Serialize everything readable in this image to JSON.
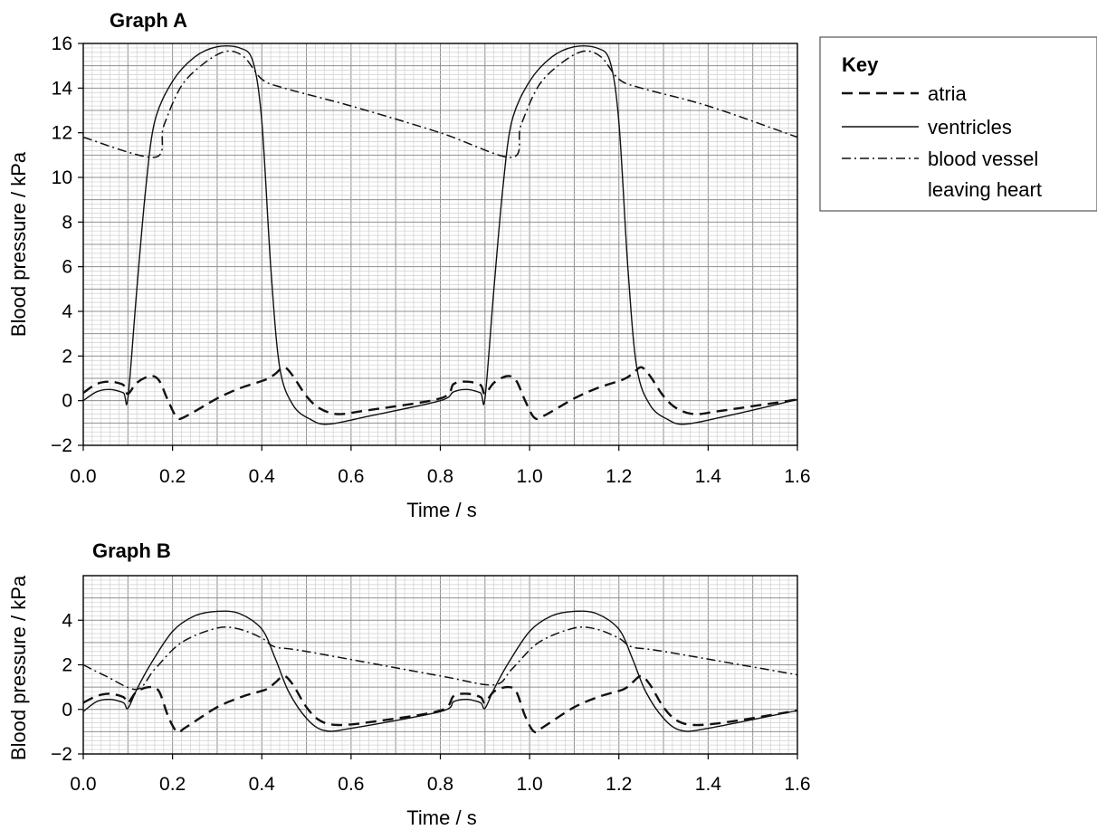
{
  "chart_data": [
    {
      "type": "line",
      "title": "Graph A",
      "xlabel": "Time / s",
      "ylabel": "Blood pressure / kPa",
      "xlim": [
        0,
        1.6
      ],
      "ylim": [
        -2,
        16
      ],
      "grid": true,
      "x_ticks": [
        "0.0",
        "0.2",
        "0.4",
        "0.6",
        "0.8",
        "1.0",
        "1.2",
        "1.4",
        "1.6"
      ],
      "y_ticks": [
        "−2",
        "0",
        "2",
        "4",
        "6",
        "8",
        "10",
        "12",
        "14",
        "16"
      ],
      "series": [
        {
          "name": "atria",
          "style": "dashed",
          "points": [
            [
              0,
              0.35
            ],
            [
              0.03,
              0.75
            ],
            [
              0.06,
              0.85
            ],
            [
              0.09,
              0.7
            ],
            [
              0.1,
              0.3
            ],
            [
              0.12,
              0.8
            ],
            [
              0.15,
              1.1
            ],
            [
              0.17,
              0.9
            ],
            [
              0.19,
              0
            ],
            [
              0.21,
              -0.75
            ],
            [
              0.23,
              -0.7
            ],
            [
              0.3,
              0.1
            ],
            [
              0.35,
              0.55
            ],
            [
              0.41,
              0.95
            ],
            [
              0.43,
              1.2
            ],
            [
              0.45,
              1.5
            ],
            [
              0.47,
              1.1
            ],
            [
              0.5,
              0.2
            ],
            [
              0.53,
              -0.35
            ],
            [
              0.57,
              -0.6
            ],
            [
              0.63,
              -0.45
            ],
            [
              0.8,
              0.1
            ],
            [
              0.83,
              0.75
            ],
            [
              0.86,
              0.85
            ],
            [
              0.89,
              0.7
            ],
            [
              0.9,
              0.3
            ],
            [
              0.92,
              0.8
            ],
            [
              0.95,
              1.1
            ],
            [
              0.97,
              0.9
            ],
            [
              0.99,
              0
            ],
            [
              1.01,
              -0.75
            ],
            [
              1.03,
              -0.7
            ],
            [
              1.1,
              0.1
            ],
            [
              1.15,
              0.55
            ],
            [
              1.21,
              0.95
            ],
            [
              1.23,
              1.2
            ],
            [
              1.25,
              1.5
            ],
            [
              1.27,
              1.1
            ],
            [
              1.3,
              0.2
            ],
            [
              1.33,
              -0.35
            ],
            [
              1.37,
              -0.6
            ],
            [
              1.43,
              -0.45
            ],
            [
              1.6,
              0.05
            ]
          ]
        },
        {
          "name": "ventricles",
          "style": "solid",
          "points": [
            [
              0,
              0
            ],
            [
              0.03,
              0.4
            ],
            [
              0.06,
              0.5
            ],
            [
              0.09,
              0.35
            ],
            [
              0.1,
              0.1
            ],
            [
              0.12,
              5
            ],
            [
              0.14,
              9.5
            ],
            [
              0.16,
              12.5
            ],
            [
              0.2,
              14.3
            ],
            [
              0.25,
              15.4
            ],
            [
              0.3,
              15.85
            ],
            [
              0.35,
              15.8
            ],
            [
              0.38,
              15.2
            ],
            [
              0.4,
              12.5
            ],
            [
              0.42,
              6
            ],
            [
              0.44,
              1.5
            ],
            [
              0.47,
              -0.2
            ],
            [
              0.51,
              -0.85
            ],
            [
              0.55,
              -1.05
            ],
            [
              0.65,
              -0.65
            ],
            [
              0.8,
              0
            ],
            [
              0.83,
              0.4
            ],
            [
              0.86,
              0.5
            ],
            [
              0.89,
              0.35
            ],
            [
              0.9,
              0.1
            ],
            [
              0.92,
              5
            ],
            [
              0.94,
              9.5
            ],
            [
              0.96,
              12.5
            ],
            [
              1.0,
              14.3
            ],
            [
              1.05,
              15.4
            ],
            [
              1.1,
              15.85
            ],
            [
              1.15,
              15.8
            ],
            [
              1.18,
              15.2
            ],
            [
              1.2,
              12.5
            ],
            [
              1.22,
              6
            ],
            [
              1.24,
              1.5
            ],
            [
              1.27,
              -0.2
            ],
            [
              1.31,
              -0.85
            ],
            [
              1.35,
              -1.05
            ],
            [
              1.45,
              -0.65
            ],
            [
              1.6,
              0.05
            ]
          ]
        },
        {
          "name": "blood vessel leaving heart",
          "style": "dashdot",
          "points": [
            [
              0,
              11.8
            ],
            [
              0.16,
              10.9
            ],
            [
              0.18,
              12.3
            ],
            [
              0.22,
              14.1
            ],
            [
              0.27,
              15.1
            ],
            [
              0.32,
              15.65
            ],
            [
              0.36,
              15.4
            ],
            [
              0.4,
              14.4
            ],
            [
              0.45,
              14.0
            ],
            [
              0.6,
              13.2
            ],
            [
              0.8,
              12.0
            ],
            [
              0.96,
              10.9
            ],
            [
              0.98,
              12.3
            ],
            [
              1.02,
              14.1
            ],
            [
              1.07,
              15.1
            ],
            [
              1.12,
              15.65
            ],
            [
              1.16,
              15.4
            ],
            [
              1.2,
              14.4
            ],
            [
              1.25,
              14.0
            ],
            [
              1.4,
              13.2
            ],
            [
              1.6,
              11.8
            ]
          ]
        }
      ]
    },
    {
      "type": "line",
      "title": "Graph B",
      "xlabel": "Time / s",
      "ylabel": "Blood pressure / kPa",
      "xlim": [
        0,
        1.6
      ],
      "ylim": [
        -2,
        6
      ],
      "grid": true,
      "x_ticks": [
        "0.0",
        "0.2",
        "0.4",
        "0.6",
        "0.8",
        "1.0",
        "1.2",
        "1.4",
        "1.6"
      ],
      "y_ticks": [
        "−2",
        "0",
        "2",
        "4"
      ],
      "series": [
        {
          "name": "atria",
          "style": "dashed",
          "points": [
            [
              0,
              0.3
            ],
            [
              0.03,
              0.6
            ],
            [
              0.06,
              0.7
            ],
            [
              0.09,
              0.55
            ],
            [
              0.1,
              0.3
            ],
            [
              0.12,
              0.8
            ],
            [
              0.15,
              1.0
            ],
            [
              0.17,
              0.8
            ],
            [
              0.19,
              -0.3
            ],
            [
              0.21,
              -1.0
            ],
            [
              0.23,
              -0.8
            ],
            [
              0.3,
              0.1
            ],
            [
              0.36,
              0.6
            ],
            [
              0.41,
              0.9
            ],
            [
              0.43,
              1.2
            ],
            [
              0.45,
              1.5
            ],
            [
              0.47,
              1.1
            ],
            [
              0.5,
              0.1
            ],
            [
              0.53,
              -0.5
            ],
            [
              0.57,
              -0.7
            ],
            [
              0.65,
              -0.55
            ],
            [
              0.8,
              -0.05
            ],
            [
              0.83,
              0.6
            ],
            [
              0.86,
              0.7
            ],
            [
              0.89,
              0.55
            ],
            [
              0.9,
              0.3
            ],
            [
              0.92,
              0.8
            ],
            [
              0.95,
              1.0
            ],
            [
              0.97,
              0.8
            ],
            [
              0.99,
              -0.3
            ],
            [
              1.01,
              -1.0
            ],
            [
              1.03,
              -0.8
            ],
            [
              1.1,
              0.1
            ],
            [
              1.16,
              0.6
            ],
            [
              1.21,
              0.9
            ],
            [
              1.23,
              1.2
            ],
            [
              1.25,
              1.5
            ],
            [
              1.27,
              1.1
            ],
            [
              1.3,
              0.1
            ],
            [
              1.33,
              -0.5
            ],
            [
              1.37,
              -0.7
            ],
            [
              1.45,
              -0.55
            ],
            [
              1.6,
              -0.05
            ]
          ]
        },
        {
          "name": "ventricles",
          "style": "solid",
          "points": [
            [
              0,
              -0.1
            ],
            [
              0.03,
              0.35
            ],
            [
              0.06,
              0.45
            ],
            [
              0.09,
              0.3
            ],
            [
              0.1,
              0.05
            ],
            [
              0.12,
              0.9
            ],
            [
              0.15,
              2.0
            ],
            [
              0.2,
              3.5
            ],
            [
              0.25,
              4.2
            ],
            [
              0.3,
              4.4
            ],
            [
              0.35,
              4.3
            ],
            [
              0.4,
              3.6
            ],
            [
              0.43,
              2.3
            ],
            [
              0.46,
              0.8
            ],
            [
              0.5,
              -0.4
            ],
            [
              0.54,
              -0.95
            ],
            [
              0.6,
              -0.85
            ],
            [
              0.8,
              -0.1
            ],
            [
              0.83,
              0.35
            ],
            [
              0.86,
              0.45
            ],
            [
              0.89,
              0.3
            ],
            [
              0.9,
              0.05
            ],
            [
              0.92,
              0.9
            ],
            [
              0.95,
              2.0
            ],
            [
              1.0,
              3.5
            ],
            [
              1.05,
              4.2
            ],
            [
              1.1,
              4.4
            ],
            [
              1.15,
              4.3
            ],
            [
              1.2,
              3.6
            ],
            [
              1.23,
              2.3
            ],
            [
              1.26,
              0.8
            ],
            [
              1.3,
              -0.4
            ],
            [
              1.34,
              -0.95
            ],
            [
              1.4,
              -0.85
            ],
            [
              1.6,
              -0.05
            ]
          ]
        },
        {
          "name": "blood vessel leaving heart",
          "style": "dashdot",
          "points": [
            [
              0,
              2.0
            ],
            [
              0.05,
              1.5
            ],
            [
              0.12,
              0.9
            ],
            [
              0.16,
              1.8
            ],
            [
              0.22,
              3.0
            ],
            [
              0.3,
              3.65
            ],
            [
              0.35,
              3.6
            ],
            [
              0.4,
              3.2
            ],
            [
              0.43,
              2.8
            ],
            [
              0.5,
              2.6
            ],
            [
              0.8,
              1.5
            ],
            [
              0.92,
              1.1
            ],
            [
              0.96,
              1.8
            ],
            [
              1.02,
              3.0
            ],
            [
              1.1,
              3.65
            ],
            [
              1.15,
              3.6
            ],
            [
              1.2,
              3.2
            ],
            [
              1.23,
              2.8
            ],
            [
              1.3,
              2.6
            ],
            [
              1.6,
              1.55
            ]
          ]
        }
      ]
    }
  ],
  "key": {
    "title": "Key",
    "entries": [
      {
        "label": "atria",
        "style": "dashed"
      },
      {
        "label": "ventricles",
        "style": "solid"
      },
      {
        "label": "blood vessel",
        "style": "dashdot"
      },
      {
        "label": "leaving heart",
        "style": "none"
      }
    ]
  }
}
